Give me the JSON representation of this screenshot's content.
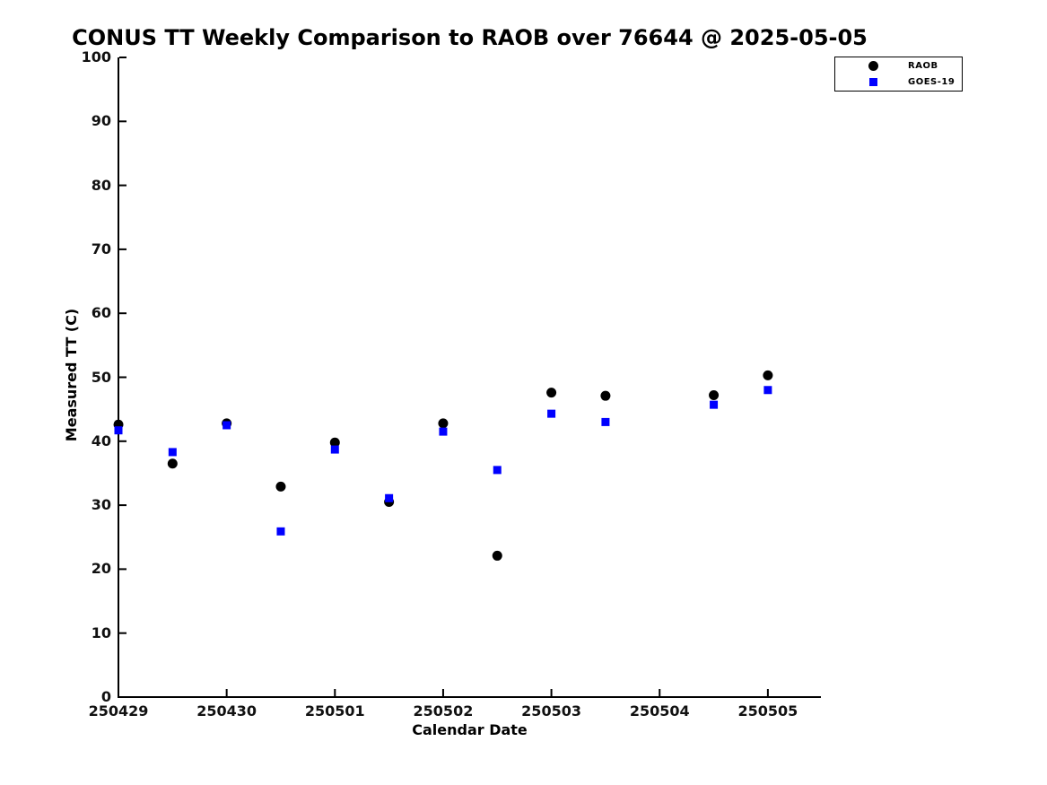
{
  "chart_data": {
    "type": "scatter",
    "title": "CONUS TT Weekly Comparison to RAOB over 76644 @ 2025-05-05",
    "xlabel": "Calendar Date",
    "ylabel": "Measured TT (C)",
    "x_unit": "days since first tick (observations every 0.5 day; 250504 00Z missing)",
    "x": [
      0,
      0.5,
      1,
      1.5,
      2,
      2.5,
      3,
      3.5,
      4,
      4.5,
      5.5,
      6
    ],
    "series": [
      {
        "name": "RAOB",
        "marker": "circle",
        "color": "#000000",
        "values": [
          42.6,
          36.5,
          42.8,
          32.9,
          39.8,
          30.5,
          42.8,
          22.1,
          47.6,
          47.1,
          47.2,
          50.3
        ]
      },
      {
        "name": "GOES-19",
        "marker": "square",
        "color": "#0000ff",
        "values": [
          41.7,
          38.3,
          42.5,
          25.9,
          38.7,
          31.1,
          41.5,
          35.5,
          44.3,
          43.0,
          45.7,
          48.0
        ]
      }
    ],
    "xtick_positions": [
      0,
      1,
      2,
      3,
      4,
      5,
      6
    ],
    "xtick_labels": [
      "250429",
      "250430",
      "250501",
      "250502",
      "250503",
      "250504",
      "250505"
    ],
    "ytick_values": [
      0,
      10,
      20,
      30,
      40,
      50,
      60,
      70,
      80,
      90,
      100
    ],
    "xlim": [
      0,
      6.49
    ],
    "ylim": [
      0,
      100
    ],
    "grid": false,
    "legend_position": "top-right outside plot"
  }
}
